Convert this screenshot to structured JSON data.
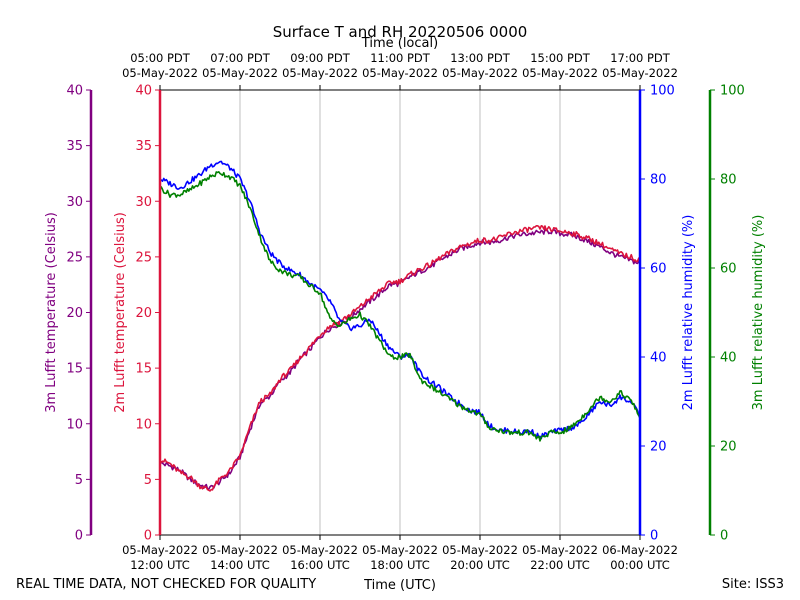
{
  "chart_data": {
    "type": "line",
    "title": "Surface T and RH 20220506 0000",
    "top_axis_label": "Time (local)",
    "xlabel": "Time (UTC)",
    "footer_left": "REAL TIME DATA, NOT CHECKED FOR QUALITY",
    "footer_right": "Site: ISS3",
    "x_range_hours_utc": [
      12,
      24
    ],
    "grid": "vertical",
    "axes": [
      {
        "id": "t3m",
        "label": "3m Lufft temperature (Celsius)",
        "range": [
          0,
          40
        ],
        "ticks": [
          0,
          5,
          10,
          15,
          20,
          25,
          30,
          35,
          40
        ],
        "color": "#800080"
      },
      {
        "id": "t2m",
        "label": "2m Lufft temperature (Celsius)",
        "range": [
          0,
          40
        ],
        "ticks": [
          0,
          5,
          10,
          15,
          20,
          25,
          30,
          35,
          40
        ],
        "color": "#dc143c"
      },
      {
        "id": "rh2m",
        "label": "2m Lufft relative humidity (%)",
        "range": [
          0,
          100
        ],
        "ticks": [
          0,
          20,
          40,
          60,
          80,
          100
        ],
        "color": "#0000ff"
      },
      {
        "id": "rh3m",
        "label": "3m Lufft relative humidity (%)",
        "range": [
          0,
          100
        ],
        "ticks": [
          0,
          20,
          40,
          60,
          80,
          100
        ],
        "color": "#008000"
      }
    ],
    "bottom_ticks": [
      {
        "hour": 12,
        "date": "05-May-2022",
        "time": "12:00 UTC"
      },
      {
        "hour": 14,
        "date": "05-May-2022",
        "time": "14:00 UTC"
      },
      {
        "hour": 16,
        "date": "05-May-2022",
        "time": "16:00 UTC"
      },
      {
        "hour": 18,
        "date": "05-May-2022",
        "time": "18:00 UTC"
      },
      {
        "hour": 20,
        "date": "05-May-2022",
        "time": "20:00 UTC"
      },
      {
        "hour": 22,
        "date": "05-May-2022",
        "time": "22:00 UTC"
      },
      {
        "hour": 24,
        "date": "06-May-2022",
        "time": "00:00 UTC"
      }
    ],
    "top_ticks": [
      {
        "hour": 12,
        "time": "05:00 PDT",
        "date": "05-May-2022"
      },
      {
        "hour": 14,
        "time": "07:00 PDT",
        "date": "05-May-2022"
      },
      {
        "hour": 16,
        "time": "09:00 PDT",
        "date": "05-May-2022"
      },
      {
        "hour": 18,
        "time": "11:00 PDT",
        "date": "05-May-2022"
      },
      {
        "hour": 20,
        "time": "13:00 PDT",
        "date": "05-May-2022"
      },
      {
        "hour": 22,
        "time": "15:00 PDT",
        "date": "05-May-2022"
      },
      {
        "hour": 24,
        "time": "17:00 PDT",
        "date": "05-May-2022"
      }
    ],
    "x": [
      12.0,
      12.25,
      12.5,
      12.75,
      13.0,
      13.25,
      13.5,
      13.75,
      14.0,
      14.25,
      14.5,
      14.75,
      15.0,
      15.25,
      15.5,
      15.75,
      16.0,
      16.25,
      16.5,
      16.75,
      17.0,
      17.25,
      17.5,
      17.75,
      18.0,
      18.25,
      18.5,
      18.75,
      19.0,
      19.25,
      19.5,
      19.75,
      20.0,
      20.25,
      20.5,
      20.75,
      21.0,
      21.25,
      21.5,
      21.75,
      22.0,
      22.25,
      22.5,
      22.75,
      23.0,
      23.25,
      23.5,
      23.75,
      24.0
    ],
    "series": [
      {
        "name": "3m Lufft temperature",
        "axis": "t3m",
        "color": "#800080",
        "values": [
          6.5,
          6.2,
          5.8,
          5.0,
          4.5,
          4.2,
          4.8,
          5.6,
          7.0,
          9.5,
          11.8,
          12.5,
          13.8,
          14.6,
          15.8,
          16.7,
          17.8,
          18.6,
          19.0,
          19.5,
          20.3,
          21.0,
          21.7,
          22.5,
          22.6,
          23.2,
          23.7,
          24.1,
          24.7,
          25.2,
          25.7,
          26.0,
          26.3,
          26.3,
          26.5,
          26.8,
          27.0,
          27.1,
          27.2,
          27.3,
          27.1,
          27.0,
          26.7,
          26.3,
          25.9,
          25.4,
          25.0,
          24.7,
          24.4
        ]
      },
      {
        "name": "2m Lufft temperature",
        "axis": "t2m",
        "color": "#dc143c",
        "values": [
          6.8,
          6.4,
          5.6,
          5.2,
          4.4,
          4.0,
          5.0,
          5.8,
          7.1,
          9.7,
          12.0,
          12.6,
          14.0,
          14.8,
          15.9,
          16.9,
          18.0,
          18.8,
          19.2,
          19.8,
          20.5,
          21.3,
          22.0,
          22.7,
          22.8,
          23.4,
          23.9,
          24.3,
          24.9,
          25.4,
          25.9,
          26.2,
          26.5,
          26.5,
          26.7,
          27.1,
          27.3,
          27.5,
          27.6,
          27.5,
          27.3,
          27.2,
          26.9,
          26.6,
          26.2,
          25.7,
          25.3,
          25.0,
          24.7
        ]
      },
      {
        "name": "2m Lufft relative humidity",
        "axis": "rh2m",
        "color": "#0000ff",
        "values": [
          80.0,
          79.0,
          78.0,
          79.5,
          81.0,
          83.0,
          84.0,
          82.5,
          80.0,
          75.0,
          68.0,
          63.5,
          61.0,
          59.5,
          58.5,
          56.5,
          55.0,
          52.5,
          48.0,
          46.5,
          47.0,
          48.5,
          45.0,
          42.0,
          40.0,
          40.5,
          36.5,
          34.5,
          33.0,
          31.0,
          29.5,
          28.0,
          27.5,
          24.5,
          23.5,
          23.5,
          23.0,
          23.5,
          22.0,
          23.0,
          23.5,
          24.0,
          25.0,
          27.5,
          30.0,
          29.0,
          31.0,
          30.0,
          27.0
        ]
      },
      {
        "name": "3m Lufft relative humidity",
        "axis": "rh3m",
        "color": "#008000",
        "values": [
          78.0,
          76.5,
          76.5,
          77.5,
          79.0,
          80.5,
          81.5,
          80.5,
          78.5,
          73.5,
          67.0,
          61.5,
          59.5,
          58.5,
          58.0,
          56.0,
          54.5,
          48.5,
          47.0,
          48.5,
          49.5,
          47.0,
          43.5,
          40.0,
          40.0,
          40.5,
          35.0,
          33.5,
          32.0,
          30.5,
          29.0,
          28.0,
          27.0,
          24.0,
          23.5,
          23.0,
          23.0,
          23.0,
          21.5,
          23.0,
          23.0,
          24.0,
          26.0,
          28.5,
          31.0,
          30.0,
          32.0,
          30.5,
          26.5
        ]
      }
    ]
  }
}
